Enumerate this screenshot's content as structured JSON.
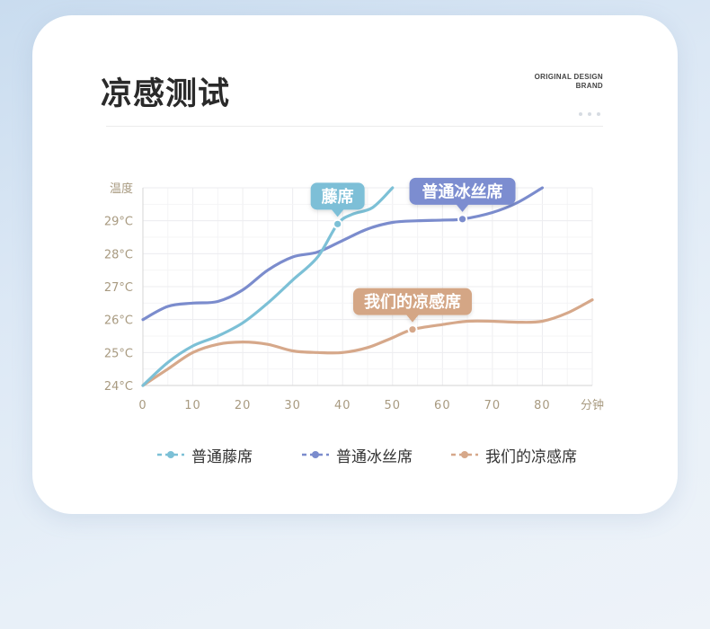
{
  "page": {
    "title": "凉感测试",
    "brand_line1": "ORIGINAL DESIGN",
    "brand_line2": "BRAND"
  },
  "chart_data": {
    "type": "line",
    "ylabel": "温度",
    "xlabel": "分钟",
    "xlim": [
      0,
      90
    ],
    "ylim": [
      24,
      30
    ],
    "x_ticks": [
      "0",
      "10",
      "20",
      "30",
      "40",
      "50",
      "60",
      "70",
      "80"
    ],
    "y_ticks": [
      "24°C",
      "25°C",
      "26°C",
      "27°C",
      "28°C",
      "29°C"
    ],
    "grid": true,
    "legend_position": "bottom",
    "series": [
      {
        "name": "普通藤席",
        "color": "#7cc0d6",
        "callout": "藤席",
        "callout_color": "#7dbfd7",
        "marker": [
          39,
          28.9
        ],
        "x": [
          0,
          5,
          10,
          15,
          20,
          25,
          30,
          35,
          39,
          42,
          46,
          50
        ],
        "y": [
          24.0,
          24.7,
          25.2,
          25.5,
          25.9,
          26.5,
          27.2,
          27.9,
          28.9,
          29.2,
          29.4,
          30.0
        ]
      },
      {
        "name": "普通冰丝席",
        "color": "#7b8ccd",
        "callout": "普通冰丝席",
        "callout_color": "#7b8dd0",
        "marker": [
          64,
          29.05
        ],
        "x": [
          0,
          5,
          10,
          15,
          20,
          25,
          30,
          35,
          40,
          45,
          50,
          55,
          60,
          64,
          70,
          75,
          80
        ],
        "y": [
          26.0,
          26.4,
          26.5,
          26.55,
          26.9,
          27.5,
          27.9,
          28.05,
          28.4,
          28.75,
          28.95,
          29.0,
          29.02,
          29.05,
          29.25,
          29.55,
          30.0
        ]
      },
      {
        "name": "我们的凉感席",
        "color": "#d6a88a",
        "callout": "我们的凉感席",
        "callout_color": "#d4a685",
        "marker": [
          54,
          25.7
        ],
        "x": [
          0,
          5,
          10,
          15,
          20,
          25,
          30,
          35,
          40,
          45,
          50,
          54,
          60,
          65,
          70,
          75,
          80,
          85,
          90
        ],
        "y": [
          24.0,
          24.5,
          25.0,
          25.25,
          25.32,
          25.25,
          25.05,
          25.0,
          25.0,
          25.15,
          25.45,
          25.7,
          25.85,
          25.95,
          25.95,
          25.92,
          25.95,
          26.2,
          26.6
        ]
      }
    ]
  }
}
